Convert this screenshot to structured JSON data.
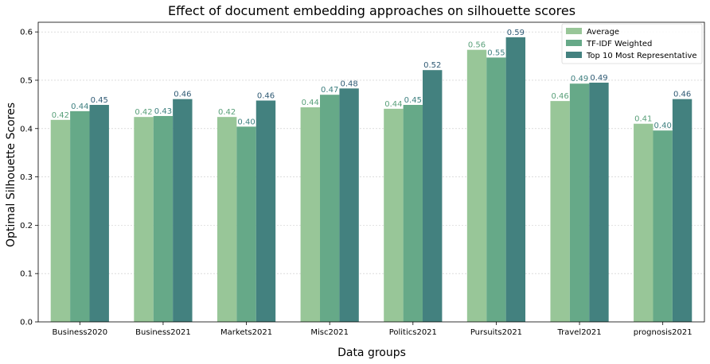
{
  "chart_data": {
    "type": "bar",
    "title": "Effect of document embedding approaches on silhouette scores",
    "xlabel": "Data groups",
    "ylabel": "Optimal Silhouette Scores",
    "ylim": [
      0,
      0.62
    ],
    "yticks": [
      0.0,
      0.1,
      0.2,
      0.3,
      0.4,
      0.5,
      0.6
    ],
    "ytick_labels": [
      "0.0",
      "0.1",
      "0.2",
      "0.3",
      "0.4",
      "0.5",
      "0.6"
    ],
    "grid": "y",
    "legend_position": "top-right",
    "categories": [
      "Business2020",
      "Business2021",
      "Markets2021",
      "Misc2021",
      "Politics2021",
      "Pursuits2021",
      "Travel2021",
      "prognosis2021"
    ],
    "series": [
      {
        "name": "Average",
        "color": "#98c698",
        "label_color": "#5aa07a",
        "values": [
          0.418,
          0.424,
          0.424,
          0.444,
          0.441,
          0.563,
          0.457,
          0.41
        ],
        "labels": [
          "0.42",
          "0.42",
          "0.42",
          "0.44",
          "0.44",
          "0.56",
          "0.46",
          "0.41"
        ]
      },
      {
        "name": "TF-IDF Weighted",
        "color": "#66a988",
        "label_color": "#3f8080",
        "values": [
          0.436,
          0.426,
          0.404,
          0.47,
          0.449,
          0.547,
          0.493,
          0.396
        ],
        "labels": [
          "0.44",
          "0.43",
          "0.40",
          "0.47",
          "0.45",
          "0.55",
          "0.49",
          "0.40"
        ]
      },
      {
        "name": "Top 10 Most Representative",
        "color": "#43817f",
        "label_color": "#2f5a74",
        "values": [
          0.449,
          0.461,
          0.458,
          0.483,
          0.521,
          0.589,
          0.495,
          0.461
        ],
        "labels": [
          "0.45",
          "0.46",
          "0.46",
          "0.48",
          "0.52",
          "0.59",
          "0.49",
          "0.46"
        ]
      }
    ]
  }
}
